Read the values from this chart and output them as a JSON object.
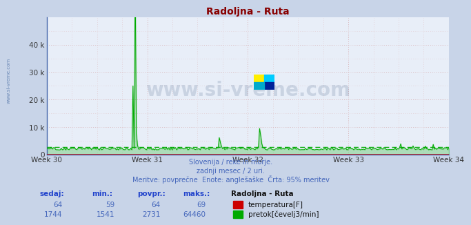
{
  "title": "Radoljna - Ruta",
  "title_color": "#880000",
  "bg_color": "#c8d4e8",
  "plot_bg_color": "#e8eef8",
  "grid_dot_color": "#ffaaaa",
  "x_weeks": [
    30,
    31,
    32,
    33,
    34
  ],
  "y_max": 50000,
  "y_ticks": [
    0,
    10000,
    20000,
    30000,
    40000
  ],
  "y_tick_labels": [
    "0",
    "10 k",
    "20 k",
    "30 k",
    "40 k"
  ],
  "temp_color": "#cc0000",
  "flow_color": "#00aa00",
  "subtitle_lines": [
    "Slovenija / reke in morje.",
    "zadnji mesec / 2 uri.",
    "Meritve: povprečne  Enote: anglešaške  Črta: 95% meritev"
  ],
  "subtitle_color": "#4466bb",
  "table_header_color": "#2244cc",
  "table_label": "Radoljna - Ruta",
  "row1_values": [
    "64",
    "59",
    "64",
    "69"
  ],
  "row2_values": [
    "1744",
    "1541",
    "2731",
    "64460"
  ],
  "legend_temp": "temperatura[F]",
  "legend_flow": "pretok[čevelj3/min]",
  "watermark": "www.si-vreme.com",
  "watermark_color": "#1a3a6a",
  "n_points": 360,
  "flow_base": 2000,
  "flow_avg": 2731,
  "logo_colors": [
    "#ffee00",
    "#00ccff",
    "#002288",
    "#00aaaa"
  ]
}
